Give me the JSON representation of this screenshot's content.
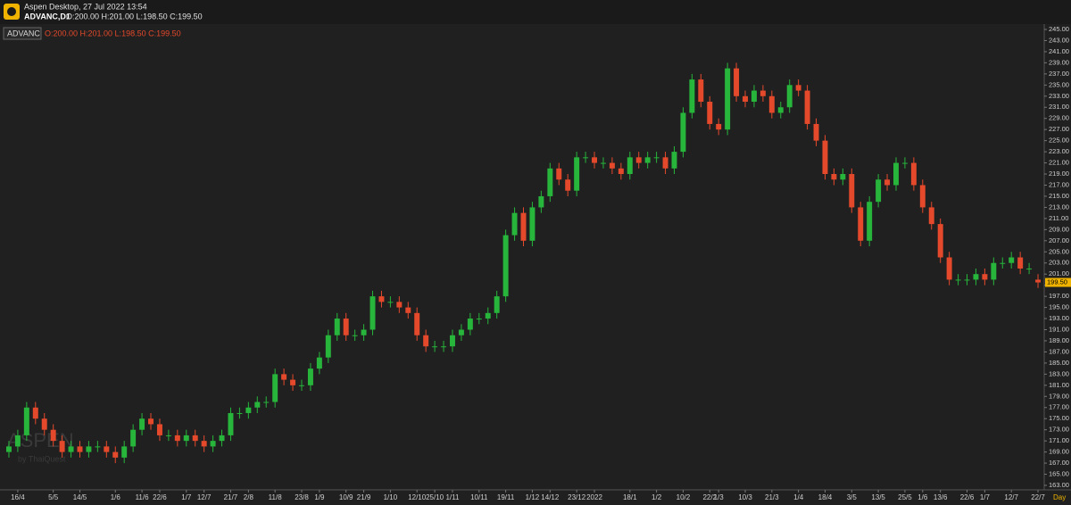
{
  "app": {
    "title": "Aspen Desktop, 27 Jul 2022 13:54",
    "symbol": "ADVANC,D1",
    "ohlc": "O:200.00 H:201.00 L:198.50 C:199.50"
  },
  "chart_data": {
    "type": "candlestick",
    "symbol": "ADVANC",
    "ohlc": "O:200.00 H:201.00 L:198.50 C:199.50",
    "watermark": "ASPEN",
    "watermark_sub": "by ThaiQuest",
    "period": "Day",
    "up_color": "#27b53b",
    "down_color": "#e5492b",
    "grid": false,
    "open": [
      169,
      170,
      172,
      177,
      175,
      173,
      171,
      169,
      170,
      169,
      170,
      170,
      169,
      168,
      170,
      173,
      175,
      174,
      172,
      172,
      171,
      172,
      171,
      170,
      171,
      172,
      176,
      176,
      177,
      178,
      178,
      183,
      182,
      181,
      181,
      184,
      186,
      190,
      193,
      190,
      190,
      191,
      197,
      196,
      196,
      195,
      194,
      190,
      188,
      188,
      188,
      190,
      191,
      193,
      193,
      194,
      197,
      208,
      212,
      207,
      213,
      215,
      220,
      218,
      216,
      222,
      222,
      221,
      221,
      220,
      219,
      222,
      221,
      222,
      222,
      220,
      223,
      230,
      236,
      232,
      228,
      227,
      238,
      233,
      232,
      234,
      233,
      230,
      231,
      235,
      234,
      228,
      225,
      219,
      218,
      219,
      213,
      207,
      214,
      218,
      217,
      221,
      221,
      217,
      213,
      210,
      204,
      200,
      200,
      200,
      201,
      200,
      203,
      203,
      204,
      202,
      200
    ],
    "high": [
      171,
      173,
      178,
      178,
      176,
      174,
      172,
      171,
      171,
      171,
      171,
      171,
      170,
      171,
      174,
      176,
      176,
      175,
      173,
      173,
      173,
      173,
      172,
      172,
      173,
      177,
      177,
      178,
      179,
      179,
      184,
      184,
      183,
      182,
      185,
      187,
      191,
      194,
      194,
      191,
      192,
      198,
      198,
      197,
      197,
      196,
      195,
      191,
      189,
      189,
      191,
      192,
      194,
      194,
      195,
      198,
      209,
      213,
      213,
      214,
      216,
      221,
      221,
      219,
      223,
      223,
      223,
      222,
      222,
      221,
      223,
      223,
      223,
      223,
      223,
      224,
      231,
      237,
      237,
      233,
      229,
      239,
      239,
      234,
      235,
      235,
      234,
      232,
      236,
      236,
      235,
      229,
      226,
      220,
      220,
      220,
      214,
      215,
      219,
      219,
      222,
      222,
      222,
      218,
      214,
      211,
      205,
      201,
      201,
      202,
      202,
      204,
      204,
      205,
      205,
      203,
      201
    ],
    "low": [
      168,
      169,
      171,
      174,
      172,
      170,
      168,
      168,
      168,
      168,
      169,
      168,
      167,
      167,
      169,
      172,
      173,
      171,
      171,
      170,
      170,
      170,
      169,
      169,
      170,
      171,
      175,
      175,
      176,
      177,
      177,
      181,
      180,
      180,
      180,
      183,
      185,
      189,
      189,
      189,
      189,
      190,
      195,
      195,
      194,
      193,
      189,
      187,
      187,
      187,
      187,
      189,
      190,
      192,
      192,
      193,
      196,
      207,
      206,
      206,
      212,
      214,
      217,
      215,
      215,
      221,
      220,
      220,
      219,
      218,
      218,
      220,
      220,
      221,
      219,
      219,
      222,
      229,
      231,
      227,
      226,
      226,
      232,
      231,
      231,
      232,
      229,
      229,
      230,
      233,
      227,
      224,
      218,
      217,
      217,
      212,
      206,
      206,
      213,
      216,
      216,
      220,
      216,
      212,
      209,
      203,
      199,
      199,
      199,
      199,
      199,
      199,
      202,
      202,
      201,
      201,
      198.5
    ],
    "close": [
      170,
      172,
      177,
      175,
      173,
      171,
      169,
      170,
      169,
      170,
      170,
      169,
      168,
      170,
      173,
      175,
      174,
      172,
      172,
      171,
      172,
      171,
      170,
      171,
      172,
      176,
      176,
      177,
      178,
      178,
      183,
      182,
      181,
      181,
      184,
      186,
      190,
      193,
      190,
      190,
      191,
      197,
      196,
      196,
      195,
      194,
      190,
      188,
      188,
      188,
      190,
      191,
      193,
      193,
      194,
      197,
      208,
      212,
      207,
      213,
      215,
      220,
      218,
      216,
      222,
      222,
      221,
      221,
      220,
      219,
      222,
      221,
      222,
      222,
      220,
      223,
      230,
      236,
      232,
      228,
      227,
      238,
      233,
      232,
      234,
      233,
      230,
      231,
      235,
      234,
      228,
      225,
      219,
      218,
      219,
      213,
      207,
      214,
      218,
      217,
      221,
      221,
      217,
      213,
      210,
      204,
      200,
      200,
      200,
      201,
      200,
      203,
      203,
      204,
      202,
      202,
      199.5
    ],
    "last": {
      "value": 199.5,
      "label": "199.50"
    },
    "xlim": [
      -0.5,
      116.5
    ],
    "xticks": [
      {
        "value": 1,
        "label": "16/4"
      },
      {
        "value": 5,
        "label": "5/5"
      },
      {
        "value": 8,
        "label": "14/5"
      },
      {
        "value": 12,
        "label": "1/6"
      },
      {
        "value": 15,
        "label": "11/6"
      },
      {
        "value": 17,
        "label": "22/6"
      },
      {
        "value": 20,
        "label": "1/7"
      },
      {
        "value": 22,
        "label": "12/7"
      },
      {
        "value": 25,
        "label": "21/7"
      },
      {
        "value": 27,
        "label": "2/8"
      },
      {
        "value": 30,
        "label": "11/8"
      },
      {
        "value": 33,
        "label": "23/8"
      },
      {
        "value": 35,
        "label": "1/9"
      },
      {
        "value": 38,
        "label": "10/9"
      },
      {
        "value": 40,
        "label": "21/9"
      },
      {
        "value": 43,
        "label": "1/10"
      },
      {
        "value": 46,
        "label": "12/10"
      },
      {
        "value": 48,
        "label": "25/10"
      },
      {
        "value": 50,
        "label": "1/11"
      },
      {
        "value": 53,
        "label": "10/11"
      },
      {
        "value": 56,
        "label": "19/11"
      },
      {
        "value": 59,
        "label": "1/12"
      },
      {
        "value": 61,
        "label": "14/12"
      },
      {
        "value": 64,
        "label": "23/12"
      },
      {
        "value": 66,
        "label": "2022"
      },
      {
        "value": 70,
        "label": "18/1"
      },
      {
        "value": 73,
        "label": "1/2"
      },
      {
        "value": 76,
        "label": "10/2"
      },
      {
        "value": 79,
        "label": "22/2"
      },
      {
        "value": 80,
        "label": "1/3"
      },
      {
        "value": 83,
        "label": "10/3"
      },
      {
        "value": 86,
        "label": "21/3"
      },
      {
        "value": 89,
        "label": "1/4"
      },
      {
        "value": 92,
        "label": "18/4"
      },
      {
        "value": 95,
        "label": "3/5"
      },
      {
        "value": 98,
        "label": "13/5"
      },
      {
        "value": 101,
        "label": "25/5"
      },
      {
        "value": 103,
        "label": "1/6"
      },
      {
        "value": 105,
        "label": "13/6"
      },
      {
        "value": 108,
        "label": "22/6"
      },
      {
        "value": 110,
        "label": "1/7"
      },
      {
        "value": 113,
        "label": "12/7"
      },
      {
        "value": 116,
        "label": "22/7"
      }
    ],
    "ylim": [
      163,
      245
    ],
    "yticks": [
      {
        "value": 163,
        "label": "163.00"
      },
      {
        "value": 165,
        "label": "165.00"
      },
      {
        "value": 167,
        "label": "167.00"
      },
      {
        "value": 169,
        "label": "169.00"
      },
      {
        "value": 171,
        "label": "171.00"
      },
      {
        "value": 173,
        "label": "173.00"
      },
      {
        "value": 175,
        "label": "175.00"
      },
      {
        "value": 177,
        "label": "177.00"
      },
      {
        "value": 179,
        "label": "179.00"
      },
      {
        "value": 181,
        "label": "181.00"
      },
      {
        "value": 183,
        "label": "183.00"
      },
      {
        "value": 185,
        "label": "185.00"
      },
      {
        "value": 187,
        "label": "187.00"
      },
      {
        "value": 189,
        "label": "189.00"
      },
      {
        "value": 191,
        "label": "191.00"
      },
      {
        "value": 193,
        "label": "193.00"
      },
      {
        "value": 195,
        "label": "195.00"
      },
      {
        "value": 197,
        "label": "197.00"
      },
      {
        "value": 199,
        "label": "199.00"
      },
      {
        "value": 201,
        "label": "201.00"
      },
      {
        "value": 203,
        "label": "203.00"
      },
      {
        "value": 205,
        "label": "205.00"
      },
      {
        "value": 207,
        "label": "207.00"
      },
      {
        "value": 209,
        "label": "209.00"
      },
      {
        "value": 211,
        "label": "211.00"
      },
      {
        "value": 213,
        "label": "213.00"
      },
      {
        "value": 215,
        "label": "215.00"
      },
      {
        "value": 217,
        "label": "217.00"
      },
      {
        "value": 219,
        "label": "219.00"
      },
      {
        "value": 221,
        "label": "221.00"
      },
      {
        "value": 223,
        "label": "223.00"
      },
      {
        "value": 225,
        "label": "225.00"
      },
      {
        "value": 227,
        "label": "227.00"
      },
      {
        "value": 229,
        "label": "229.00"
      },
      {
        "value": 231,
        "label": "231.00"
      },
      {
        "value": 233,
        "label": "233.00"
      },
      {
        "value": 235,
        "label": "235.00"
      },
      {
        "value": 237,
        "label": "237.00"
      },
      {
        "value": 239,
        "label": "239.00"
      },
      {
        "value": 241,
        "label": "241.00"
      },
      {
        "value": 243,
        "label": "243.00"
      },
      {
        "value": 245,
        "label": "245.00"
      }
    ]
  }
}
